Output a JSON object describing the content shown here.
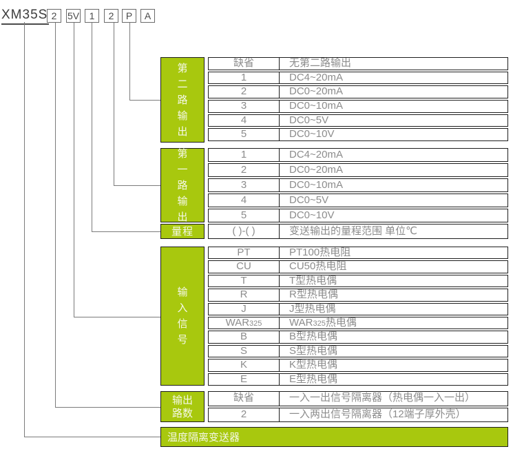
{
  "model_code": {
    "prefix": "XM35S",
    "segments": [
      {
        "label": "2"
      },
      {
        "label": "5V"
      },
      {
        "label": "1"
      },
      {
        "label": "2"
      },
      {
        "label": "P"
      },
      {
        "label": "A"
      }
    ]
  },
  "tables": [
    {
      "id": "second-output",
      "label": "第二路输出",
      "orientation": "vertical",
      "rows": [
        {
          "value": "缺省",
          "desc": "无第二路输出"
        },
        {
          "value": "1",
          "desc": "DC4~20mA"
        },
        {
          "value": "2",
          "desc": "DC0~20mA"
        },
        {
          "value": "3",
          "desc": "DC0~10mA"
        },
        {
          "value": "4",
          "desc": "DC0~5V"
        },
        {
          "value": "5",
          "desc": "DC0~10V"
        }
      ]
    },
    {
      "id": "first-output",
      "label": "第一路输出",
      "orientation": "vertical",
      "rows": [
        {
          "value": "1",
          "desc": "DC4~20mA"
        },
        {
          "value": "2",
          "desc": "DC0~20mA"
        },
        {
          "value": "3",
          "desc": "DC0~10mA"
        },
        {
          "value": "4",
          "desc": "DC0~5V"
        },
        {
          "value": "5",
          "desc": "DC0~10V"
        }
      ]
    },
    {
      "id": "range",
      "label": "量程",
      "orientation": "horizontal",
      "rows": [
        {
          "value": "( )-( )",
          "desc": "变送输出的量程范围  单位℃"
        }
      ]
    },
    {
      "id": "input-signal",
      "label": "输入信号",
      "orientation": "vertical",
      "rows": [
        {
          "value": "PT",
          "desc": "PT100热电阻"
        },
        {
          "value": "CU",
          "desc": "CU50热电阻"
        },
        {
          "value": "T",
          "desc": "T型热电偶"
        },
        {
          "value": "R",
          "desc": "R型热电偶"
        },
        {
          "value": "J",
          "desc": "J型热电偶"
        },
        {
          "value_parts": [
            {
              "t": "WAR"
            },
            {
              "t": "325",
              "small": true
            }
          ],
          "desc_parts": [
            {
              "t": "WAR"
            },
            {
              "t": "325",
              "small": true
            },
            {
              "t": "热电偶"
            }
          ]
        },
        {
          "value": "B",
          "desc": "B型热电偶"
        },
        {
          "value": "S",
          "desc": "S型热电偶"
        },
        {
          "value": "K",
          "desc": "K型热电偶"
        },
        {
          "value": "E",
          "desc": "E型热电偶"
        }
      ]
    },
    {
      "id": "output-count",
      "label": "输出路数",
      "label_lines": [
        "输出",
        "路数"
      ],
      "orientation": "twoline",
      "rows": [
        {
          "value": "缺省",
          "desc": "一入一出信号隔离器（热电偶一入一出）"
        },
        {
          "value": "2",
          "desc": "一入两出信号隔离器（12端子厚外壳）"
        }
      ]
    }
  ],
  "footer": {
    "label": "温度隔离变送器"
  },
  "colors": {
    "green": "#a8c80e",
    "table_border": "#1c1c1c",
    "connector_line": "#7a7a7a",
    "table_text": "#8c8c8c",
    "code_text": "#4a4a4a",
    "label_text": "#f5f8e8"
  }
}
